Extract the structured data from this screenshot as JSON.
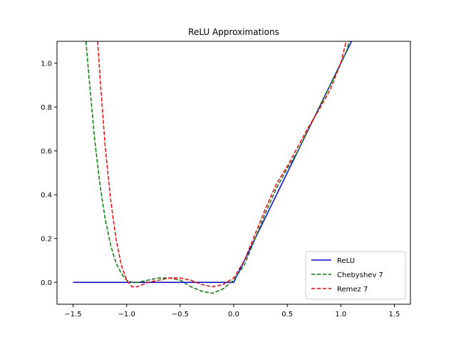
{
  "chart_data": {
    "type": "line",
    "title": "ReLU Approximations",
    "xlabel": "",
    "ylabel": "",
    "xlim": [
      -1.65,
      1.65
    ],
    "ylim": [
      -0.1,
      1.1
    ],
    "xticks": [
      "−1.5",
      "−1.0",
      "−0.5",
      "0.0",
      "0.5",
      "1.0",
      "1.5"
    ],
    "xtick_values": [
      -1.5,
      -1.0,
      -0.5,
      0.0,
      0.5,
      1.0,
      1.5
    ],
    "yticks": [
      "0.0",
      "0.2",
      "0.4",
      "0.6",
      "0.8",
      "1.0"
    ],
    "ytick_values": [
      0.0,
      0.2,
      0.4,
      0.6,
      0.8,
      1.0
    ],
    "grid": false,
    "legend_position": "bottom-right",
    "series": [
      {
        "name": "ReLU",
        "color": "#0000ff",
        "style": "solid",
        "x": [
          -1.5,
          0.0,
          1.1
        ],
        "y": [
          0.0,
          0.0,
          1.1
        ]
      },
      {
        "name": "Chebyshev 7",
        "color": "#008000",
        "style": "dashed",
        "x": [
          -1.38,
          -1.35,
          -1.3,
          -1.25,
          -1.2,
          -1.15,
          -1.1,
          -1.05,
          -1.0,
          -0.95,
          -0.9,
          -0.8,
          -0.7,
          -0.6,
          -0.5,
          -0.4,
          -0.3,
          -0.2,
          -0.1,
          0.0,
          0.1,
          0.2,
          0.3,
          0.4,
          0.5,
          0.6,
          0.7,
          0.8,
          0.9,
          1.0,
          1.05,
          1.08
        ],
        "y": [
          1.1,
          0.93,
          0.66,
          0.45,
          0.29,
          0.17,
          0.09,
          0.04,
          0.01,
          0.0,
          0.0,
          0.01,
          0.02,
          0.02,
          0.01,
          -0.02,
          -0.04,
          -0.05,
          -0.03,
          0.01,
          0.08,
          0.2,
          0.32,
          0.43,
          0.52,
          0.6,
          0.7,
          0.8,
          0.9,
          1.0,
          1.05,
          1.1
        ]
      },
      {
        "name": "Remez 7",
        "color": "#ff0000",
        "style": "dashed",
        "x": [
          -1.27,
          -1.25,
          -1.2,
          -1.15,
          -1.1,
          -1.05,
          -1.0,
          -0.95,
          -0.9,
          -0.85,
          -0.8,
          -0.7,
          -0.6,
          -0.5,
          -0.4,
          -0.3,
          -0.2,
          -0.1,
          0.0,
          0.1,
          0.2,
          0.3,
          0.4,
          0.5,
          0.6,
          0.7,
          0.8,
          0.9,
          1.0,
          1.05
        ],
        "y": [
          1.1,
          0.95,
          0.62,
          0.38,
          0.2,
          0.08,
          0.01,
          -0.02,
          -0.02,
          -0.01,
          0.0,
          0.01,
          0.02,
          0.02,
          0.01,
          -0.01,
          -0.02,
          -0.01,
          0.02,
          0.1,
          0.22,
          0.34,
          0.45,
          0.53,
          0.62,
          0.71,
          0.79,
          0.88,
          1.0,
          1.1
        ]
      }
    ]
  }
}
